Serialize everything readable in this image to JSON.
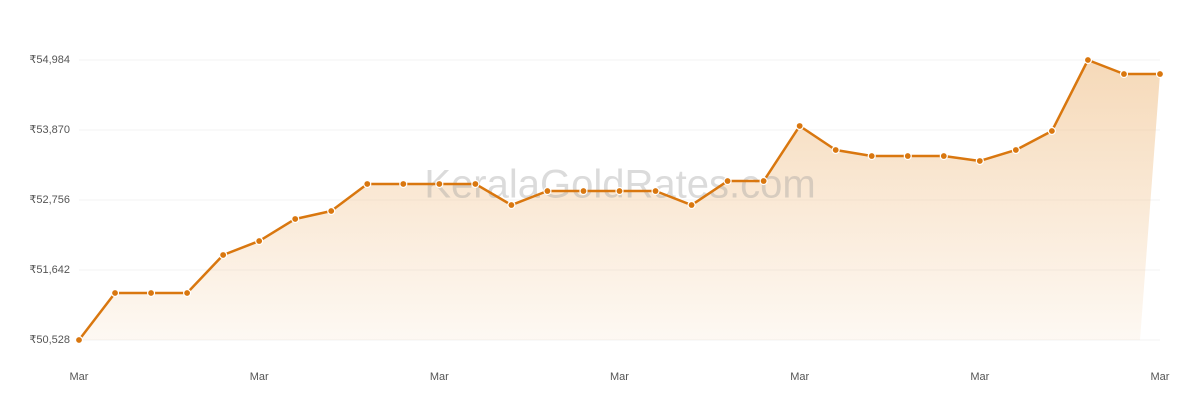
{
  "chart_data": {
    "type": "line",
    "watermark": "KeralaGoldRates.com",
    "categories": [
      "Mar",
      null,
      null,
      null,
      null,
      "Mar",
      null,
      null,
      null,
      null,
      "Mar",
      null,
      null,
      null,
      null,
      "Mar",
      null,
      null,
      null,
      null,
      "Mar",
      null,
      null,
      null,
      null,
      "Mar",
      null,
      null,
      null,
      null,
      "Mar"
    ],
    "values": [
      50528,
      51276,
      51276,
      51276,
      51881,
      52103,
      52454,
      52581,
      53011,
      53011,
      53011,
      53011,
      52676,
      52899,
      52899,
      52899,
      52899,
      52676,
      53058,
      53058,
      53934,
      53552,
      53456,
      53456,
      53456,
      53377,
      53552,
      53854,
      54984,
      54761,
      54761
    ],
    "color": "#d9770f",
    "ylim": [
      50528,
      54984
    ],
    "yticks": [
      {
        "value": 50528,
        "label": "₹50,528"
      },
      {
        "value": 51642,
        "label": "₹51,642"
      },
      {
        "value": 52756,
        "label": "₹52,756"
      },
      {
        "value": 53870,
        "label": "₹53,870"
      },
      {
        "value": 54984,
        "label": "₹54,984"
      }
    ],
    "grid": true
  }
}
